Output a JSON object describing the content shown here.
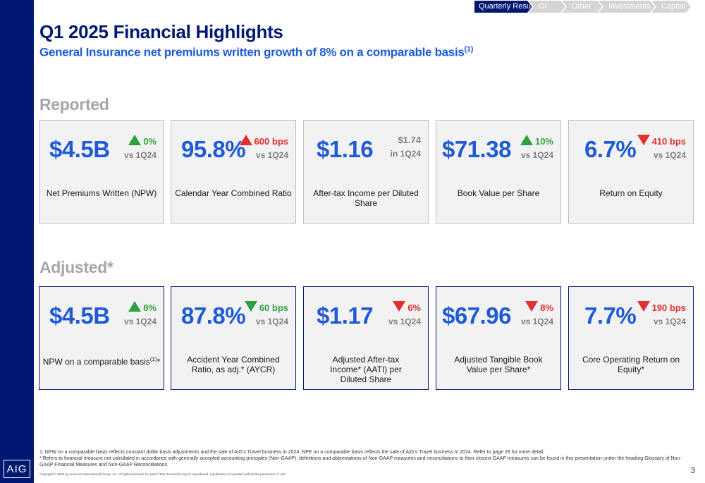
{
  "nav": {
    "items": [
      "Quarterly Results",
      "GI",
      "Other",
      "Investments",
      "Capital"
    ],
    "active": "Quarterly Results"
  },
  "header": {
    "title": "Q1 2025 Financial Highlights",
    "subtitle": "General Insurance net premiums written growth of 8% on a comparable basis",
    "subtitle_sup": "(1)"
  },
  "reported": {
    "label": "Reported",
    "cards": [
      {
        "value": "$4.5B",
        "change": "0%",
        "direction": "up",
        "ref": "vs 1Q24",
        "desc": "Net Premiums Written (NPW)"
      },
      {
        "value": "95.8%",
        "change": "600 bps",
        "direction": "up-bad",
        "ref": "vs 1Q24",
        "desc": "Calendar Year Combined Ratio"
      },
      {
        "value": "$1.16",
        "change": "$1.74",
        "direction": "none",
        "ref": "in 1Q24",
        "desc": "After-tax Income per Diluted Share"
      },
      {
        "value": "$71.38",
        "change": "10%",
        "direction": "up",
        "ref": "vs 1Q24",
        "desc": "Book Value per Share"
      },
      {
        "value": "6.7%",
        "change": "410 bps",
        "direction": "down",
        "ref": "vs 1Q24",
        "desc": "Return on Equity"
      }
    ]
  },
  "adjusted": {
    "label": "Adjusted*",
    "cards": [
      {
        "value": "$4.5B",
        "change": "8%",
        "direction": "up",
        "ref": "vs 1Q24",
        "desc": "NPW on a comparable basis",
        "desc_sup": "(1)",
        "desc_tail": "*"
      },
      {
        "value": "87.8%",
        "change": "60 bps",
        "direction": "down-good",
        "ref": "vs 1Q24",
        "desc": "Accident Year Combined Ratio, as adj.* (AYCR)"
      },
      {
        "value": "$1.17",
        "change": "6%",
        "direction": "down",
        "ref": "vs 1Q24",
        "desc": "Adjusted After-tax Income* (AATI) per Diluted Share"
      },
      {
        "value": "$67.96",
        "change": "8%",
        "direction": "down",
        "ref": "vs 1Q24",
        "desc": "Adjusted Tangible Book Value per Share*"
      },
      {
        "value": "7.7%",
        "change": "190 bps",
        "direction": "down",
        "ref": "vs 1Q24",
        "desc": "Core Operating Return on Equity*"
      }
    ]
  },
  "footnotes": {
    "note1": "1.  NPW on a comparable basis reflects constant dollar basis adjustments and the sale of AIG’s Travel business in 2024. NPE on a comparable basis reflects the sale of AIG’s Travel business in 2024. Refer to page 26 for more detail.",
    "note2": "* Refers to financial measure not calculated in accordance with generally accepted accounting principles (Non-GAAP); definitions and abbreviations of Non-GAAP measures and reconciliations to their closest GAAP measures can be found in this presentation under the heading Glossary of Non-GAAP Financial Measures and Non-GAAP Reconciliations.",
    "copyright": "Copyright © 2025 by American International Group, Inc. All rights reserved. No part of this document may be reproduced, republished or reposted without the permission of AIG."
  },
  "logo_text": "AIG",
  "page_number": "3",
  "colors": {
    "navy": "#001871",
    "blue": "#1f5bd6",
    "green": "#2ea043",
    "red": "#e03030",
    "gray": "#a6a6a6"
  }
}
